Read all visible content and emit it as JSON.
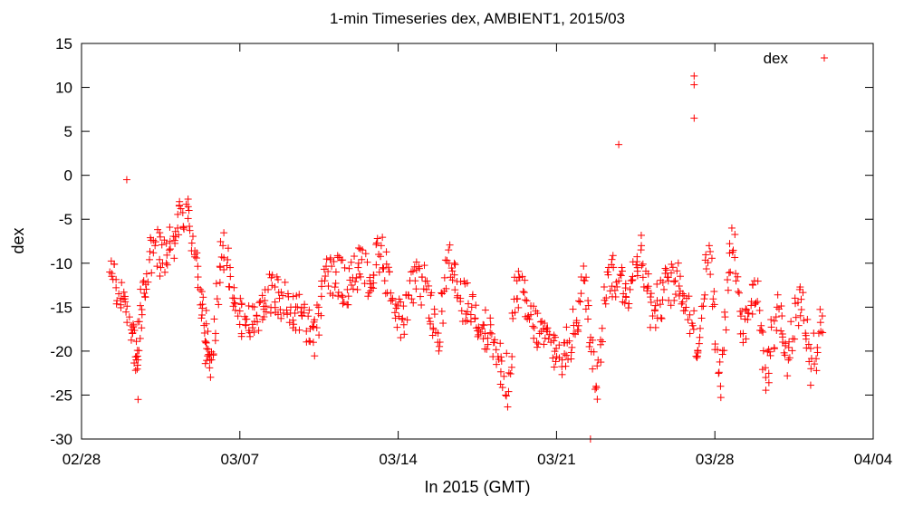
{
  "chart_data": {
    "type": "scatter",
    "title": "1-min Timeseries dex, AMBIENT1, 2015/03",
    "xlabel": "In 2015 (GMT)",
    "ylabel": "dex",
    "xlim": [
      "2015-02-28",
      "2015-04-04"
    ],
    "ylim": [
      -30,
      15
    ],
    "x_ticks": [
      {
        "date": "2015-02-28",
        "label": "02/28"
      },
      {
        "date": "2015-03-07",
        "label": "03/07"
      },
      {
        "date": "2015-03-14",
        "label": "03/14"
      },
      {
        "date": "2015-03-21",
        "label": "03/21"
      },
      {
        "date": "2015-03-28",
        "label": "03/28"
      },
      {
        "date": "2015-04-04",
        "label": "04/04"
      }
    ],
    "y_ticks": [
      15,
      10,
      5,
      0,
      -5,
      -10,
      -15,
      -20,
      -25,
      -30
    ],
    "grid": false,
    "legend_position": "top-right",
    "marker": "plus",
    "color": "#ff0000",
    "series": [
      {
        "name": "dex",
        "x": [
          "2015-03-01T06:00",
          "2015-03-01T18:00",
          "2015-03-02T06:00",
          "2015-03-02T12:00",
          "2015-03-02T18:00",
          "2015-03-03T06:00",
          "2015-03-03T18:00",
          "2015-03-04T06:00",
          "2015-03-04T18:00",
          "2015-03-05T06:00",
          "2015-03-05T12:00",
          "2015-03-05T18:00",
          "2015-03-06T06:00",
          "2015-03-06T18:00",
          "2015-03-07T06:00",
          "2015-03-07T18:00",
          "2015-03-08T06:00",
          "2015-03-08T18:00",
          "2015-03-09T06:00",
          "2015-03-09T18:00",
          "2015-03-10T06:00",
          "2015-03-10T18:00",
          "2015-03-11T06:00",
          "2015-03-11T18:00",
          "2015-03-12T06:00",
          "2015-03-12T18:00",
          "2015-03-13T06:00",
          "2015-03-13T18:00",
          "2015-03-14T06:00",
          "2015-03-14T18:00",
          "2015-03-15T06:00",
          "2015-03-15T18:00",
          "2015-03-16T06:00",
          "2015-03-16T18:00",
          "2015-03-17T06:00",
          "2015-03-17T18:00",
          "2015-03-18T06:00",
          "2015-03-18T18:00",
          "2015-03-19T06:00",
          "2015-03-19T18:00",
          "2015-03-20T06:00",
          "2015-03-20T18:00",
          "2015-03-21T06:00",
          "2015-03-21T18:00",
          "2015-03-22T06:00",
          "2015-03-22T18:00",
          "2015-03-23T06:00",
          "2015-03-23T18:00",
          "2015-03-24T06:00",
          "2015-03-24T18:00",
          "2015-03-25T06:00",
          "2015-03-25T18:00",
          "2015-03-26T06:00",
          "2015-03-26T18:00",
          "2015-03-27T06:00",
          "2015-03-27T18:00",
          "2015-03-28T06:00",
          "2015-03-28T18:00",
          "2015-03-29T06:00",
          "2015-03-29T18:00",
          "2015-03-30T06:00",
          "2015-03-30T18:00",
          "2015-03-31T06:00",
          "2015-03-31T18:00",
          "2015-04-01T06:00",
          "2015-04-01T18:00"
        ],
        "y": [
          -11,
          -14,
          -18,
          -21,
          -12,
          -8,
          -10,
          -6,
          -4,
          -13,
          -19,
          -21,
          -8,
          -14,
          -17,
          -16,
          -13,
          -14,
          -15,
          -16,
          -19,
          -12,
          -11,
          -13,
          -10,
          -12,
          -8,
          -14,
          -17,
          -12,
          -13,
          -19,
          -10,
          -14,
          -15,
          -17,
          -19,
          -25,
          -12,
          -16,
          -18,
          -19,
          -21,
          -18,
          -12,
          -24,
          -11,
          -12,
          -13,
          -8,
          -16,
          -13,
          -12,
          -14,
          -20,
          -8,
          -24,
          -6,
          -18,
          -12,
          -23,
          -15,
          -21,
          -13,
          -22,
          -16
        ],
        "outliers": [
          {
            "x": "2015-03-02T00:00",
            "y": -0.5
          },
          {
            "x": "2015-03-23T18:00",
            "y": 3.5
          },
          {
            "x": "2015-03-27T02:00",
            "y": 11.3
          },
          {
            "x": "2015-03-27T02:00",
            "y": 10.3
          },
          {
            "x": "2015-03-27T02:00",
            "y": 6.5
          },
          {
            "x": "2015-03-02T12:00",
            "y": -25.5
          },
          {
            "x": "2015-03-22T12:00",
            "y": -30
          }
        ]
      }
    ]
  }
}
